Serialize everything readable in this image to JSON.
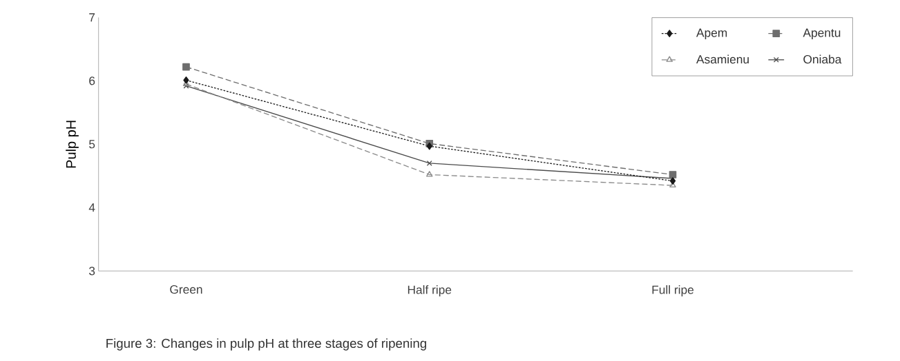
{
  "chart_data": {
    "type": "line",
    "ylabel": "Pulp pH",
    "categories": [
      "Green",
      "Half ripe",
      "Full ripe"
    ],
    "series": [
      {
        "name": "Apem",
        "color": "#1a1a1a",
        "values": [
          6.01,
          4.97,
          4.42
        ],
        "marker": "diamond",
        "line_style": "dotted"
      },
      {
        "name": "Apentu",
        "color": "#6e6e6e",
        "values": [
          6.22,
          5.01,
          4.52
        ],
        "marker": "square",
        "line_style": "dashed"
      },
      {
        "name": "Asamienu",
        "color": "#8a8a8a",
        "values": [
          5.95,
          4.52,
          4.35
        ],
        "marker": "triangle",
        "line_style": "dashed"
      },
      {
        "name": "Oniaba",
        "color": "#4a4a4a",
        "values": [
          5.92,
          4.7,
          4.46
        ],
        "marker": "cross",
        "line_style": "solid"
      }
    ],
    "ylim": [
      3,
      7
    ],
    "yticks": [
      3,
      4,
      5,
      6,
      7
    ],
    "grid": false,
    "legend": "top right",
    "annotations": [
      "Figure 3: Changes in pulp pH at three stages of ripening"
    ]
  }
}
